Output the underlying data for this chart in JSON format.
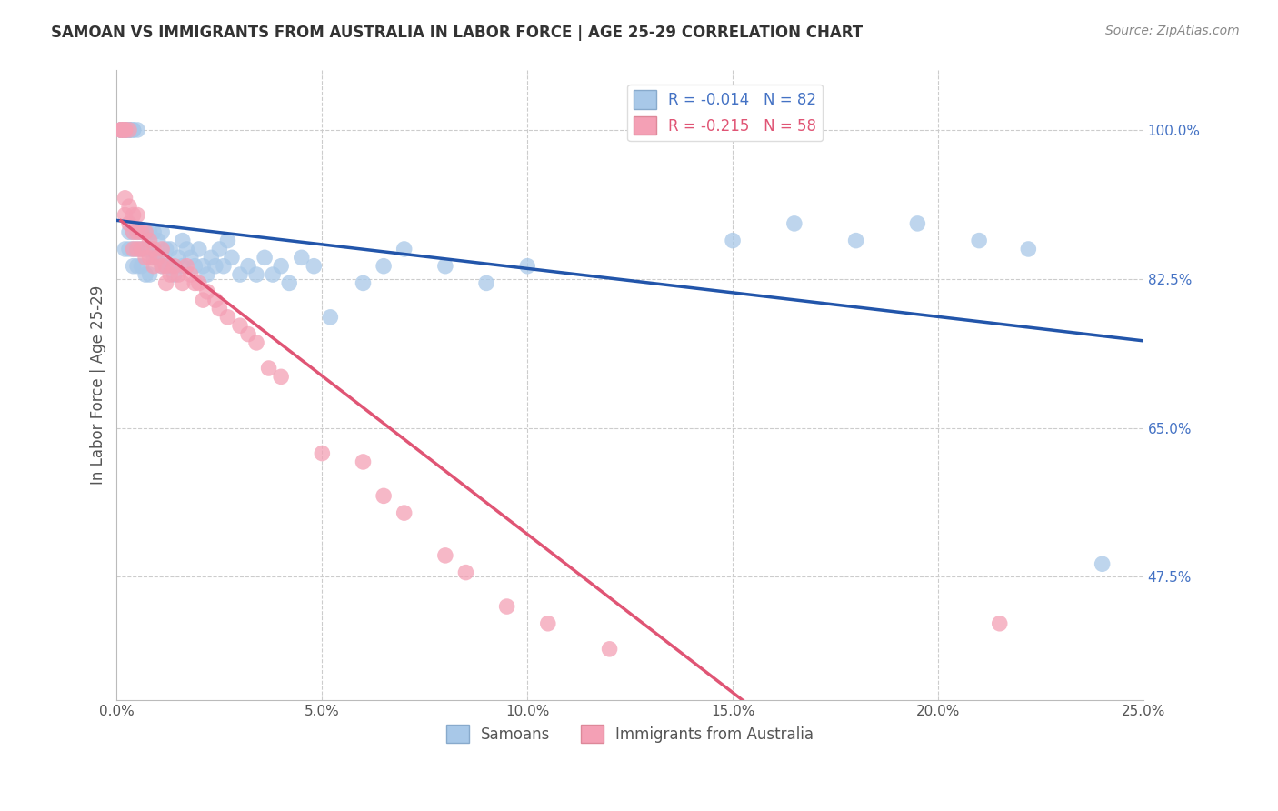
{
  "title": "SAMOAN VS IMMIGRANTS FROM AUSTRALIA IN LABOR FORCE | AGE 25-29 CORRELATION CHART",
  "source": "Source: ZipAtlas.com",
  "ylabel": "In Labor Force | Age 25-29",
  "R_blue": -0.014,
  "N_blue": 82,
  "R_pink": -0.215,
  "N_pink": 58,
  "xmin": 0.0,
  "xmax": 0.25,
  "ymin": 0.33,
  "ymax": 1.07,
  "color_blue": "#a8c8e8",
  "color_pink": "#f4a0b5",
  "trendline_blue": "#2255aa",
  "trendline_pink": "#e05575",
  "background_color": "#ffffff",
  "grid_color": "#cccccc",
  "bottom_legend_blue": "Samoans",
  "bottom_legend_pink": "Immigrants from Australia",
  "ytick_vals": [
    0.475,
    0.65,
    0.825,
    1.0
  ],
  "ytick_labels": [
    "47.5%",
    "65.0%",
    "82.5%",
    "100.0%"
  ],
  "xtick_vals": [
    0.0,
    0.05,
    0.1,
    0.15,
    0.2,
    0.25
  ],
  "blue_x": [
    0.001,
    0.001,
    0.001,
    0.002,
    0.002,
    0.002,
    0.002,
    0.002,
    0.002,
    0.003,
    0.003,
    0.003,
    0.003,
    0.003,
    0.003,
    0.004,
    0.004,
    0.004,
    0.004,
    0.004,
    0.005,
    0.005,
    0.005,
    0.005,
    0.006,
    0.006,
    0.006,
    0.007,
    0.007,
    0.007,
    0.008,
    0.008,
    0.008,
    0.009,
    0.009,
    0.01,
    0.01,
    0.011,
    0.011,
    0.012,
    0.012,
    0.013,
    0.013,
    0.014,
    0.015,
    0.016,
    0.016,
    0.017,
    0.018,
    0.019,
    0.02,
    0.021,
    0.022,
    0.023,
    0.024,
    0.025,
    0.026,
    0.027,
    0.028,
    0.03,
    0.032,
    0.034,
    0.036,
    0.038,
    0.04,
    0.042,
    0.045,
    0.048,
    0.052,
    0.06,
    0.065,
    0.07,
    0.08,
    0.09,
    0.1,
    0.15,
    0.165,
    0.18,
    0.195,
    0.21,
    0.222,
    0.24
  ],
  "blue_y": [
    1.0,
    1.0,
    1.0,
    1.0,
    1.0,
    1.0,
    1.0,
    1.0,
    0.86,
    1.0,
    1.0,
    1.0,
    1.0,
    0.88,
    0.86,
    1.0,
    1.0,
    0.88,
    0.86,
    0.84,
    1.0,
    0.88,
    0.86,
    0.84,
    0.88,
    0.86,
    0.84,
    0.88,
    0.86,
    0.83,
    0.88,
    0.86,
    0.83,
    0.88,
    0.85,
    0.87,
    0.85,
    0.88,
    0.84,
    0.86,
    0.84,
    0.86,
    0.84,
    0.83,
    0.85,
    0.87,
    0.84,
    0.86,
    0.85,
    0.84,
    0.86,
    0.84,
    0.83,
    0.85,
    0.84,
    0.86,
    0.84,
    0.87,
    0.85,
    0.83,
    0.84,
    0.83,
    0.85,
    0.83,
    0.84,
    0.82,
    0.85,
    0.84,
    0.78,
    0.82,
    0.84,
    0.86,
    0.84,
    0.82,
    0.84,
    0.87,
    0.89,
    0.87,
    0.89,
    0.87,
    0.86,
    0.49
  ],
  "pink_x": [
    0.001,
    0.001,
    0.001,
    0.002,
    0.002,
    0.002,
    0.002,
    0.002,
    0.003,
    0.003,
    0.003,
    0.004,
    0.004,
    0.004,
    0.005,
    0.005,
    0.005,
    0.006,
    0.006,
    0.007,
    0.007,
    0.008,
    0.008,
    0.009,
    0.009,
    0.01,
    0.011,
    0.011,
    0.012,
    0.012,
    0.013,
    0.014,
    0.015,
    0.016,
    0.017,
    0.018,
    0.019,
    0.02,
    0.021,
    0.022,
    0.024,
    0.025,
    0.027,
    0.03,
    0.032,
    0.034,
    0.037,
    0.04,
    0.05,
    0.06,
    0.065,
    0.07,
    0.08,
    0.085,
    0.095,
    0.105,
    0.12,
    0.215
  ],
  "pink_y": [
    1.0,
    1.0,
    1.0,
    1.0,
    1.0,
    1.0,
    0.92,
    0.9,
    1.0,
    0.91,
    0.89,
    0.9,
    0.88,
    0.86,
    0.9,
    0.88,
    0.86,
    0.88,
    0.86,
    0.88,
    0.85,
    0.87,
    0.85,
    0.86,
    0.84,
    0.85,
    0.86,
    0.84,
    0.84,
    0.82,
    0.83,
    0.84,
    0.83,
    0.82,
    0.84,
    0.83,
    0.82,
    0.82,
    0.8,
    0.81,
    0.8,
    0.79,
    0.78,
    0.77,
    0.76,
    0.75,
    0.72,
    0.71,
    0.62,
    0.61,
    0.57,
    0.55,
    0.5,
    0.48,
    0.44,
    0.42,
    0.39,
    0.42
  ]
}
